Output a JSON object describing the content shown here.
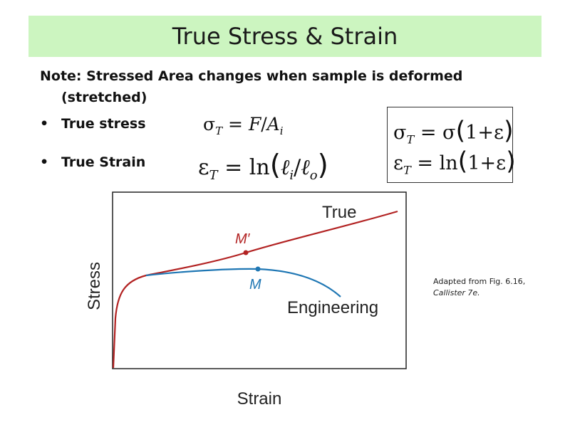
{
  "slide": {
    "title": "True Stress & Strain",
    "note_line1": "Note: Stressed Area changes when sample is deformed",
    "note_line2": "(stretched)",
    "bullets": [
      {
        "label": "True stress",
        "formula": "σT = F/Ai"
      },
      {
        "label": "True Strain",
        "formula": "εT = ln(ℓi/ℓo)"
      }
    ],
    "box_formulas": [
      "σT = σ(1+ε)",
      "εT = ln(1+ε)"
    ],
    "caption_line1": "Adapted from Fig. 6.16,",
    "caption_line2": "Callister 7e."
  },
  "chart_data": {
    "type": "line",
    "xlabel": "Strain",
    "ylabel": "Stress",
    "series": [
      {
        "name": "True",
        "color": "#b22222"
      },
      {
        "name": "Engineering",
        "color": "#1f77b4"
      }
    ],
    "annotations": [
      {
        "label": "M′",
        "series": "True",
        "color": "#b22222"
      },
      {
        "label": "M",
        "series": "Engineering",
        "color": "#1f77b4"
      }
    ],
    "grid": false,
    "legend": "none"
  }
}
